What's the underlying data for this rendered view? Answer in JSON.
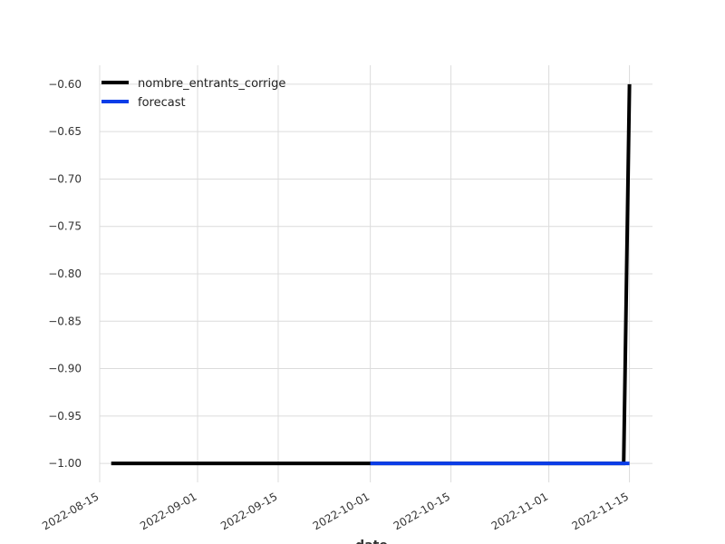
{
  "chart_data": {
    "type": "line",
    "title": "",
    "xlabel": "date",
    "ylabel": "",
    "x_axis": {
      "type": "date",
      "range": [
        "2022-08-15",
        "2022-11-19"
      ],
      "ticks": [
        "2022-08-15",
        "2022-09-01",
        "2022-09-15",
        "2022-10-01",
        "2022-10-15",
        "2022-11-01",
        "2022-11-15"
      ]
    },
    "y_axis": {
      "range": [
        -1.02,
        -0.58
      ],
      "ticks": [
        -1.0,
        -0.95,
        -0.9,
        -0.85,
        -0.8,
        -0.75,
        -0.7,
        -0.65,
        -0.6
      ],
      "tick_labels": [
        "−1.00",
        "−0.95",
        "−0.90",
        "−0.85",
        "−0.80",
        "−0.75",
        "−0.70",
        "−0.65",
        "−0.60"
      ]
    },
    "grid": true,
    "legend_position": "top-left",
    "series": [
      {
        "name": "nombre_entrants_corrige",
        "color": "#000000",
        "points": [
          {
            "x": "2022-08-17",
            "y": -1.0
          },
          {
            "x": "2022-11-14",
            "y": -1.0
          },
          {
            "x": "2022-11-15",
            "y": -0.6
          }
        ]
      },
      {
        "name": "forecast",
        "color": "#0a3de8",
        "points": [
          {
            "x": "2022-10-01",
            "y": -1.0
          },
          {
            "x": "2022-11-15",
            "y": -1.0
          }
        ]
      }
    ]
  }
}
